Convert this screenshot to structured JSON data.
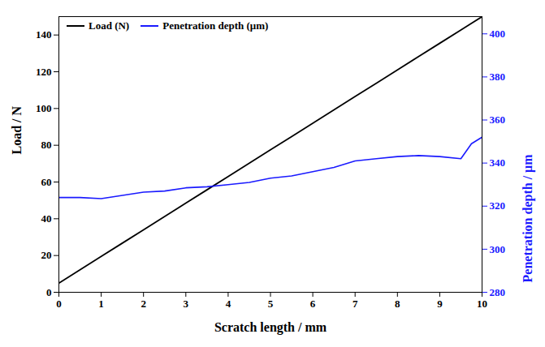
{
  "chart_data": {
    "type": "line",
    "x_label": "Scratch length / mm",
    "y_label": "Load / N",
    "y2_label": "Penetration depth / μm",
    "x": [
      0,
      0.5,
      1,
      1.5,
      2,
      2.5,
      3,
      3.5,
      4,
      4.5,
      5,
      5.5,
      6,
      6.5,
      7,
      7.5,
      8,
      8.5,
      9,
      9.5,
      9.75,
      10
    ],
    "series": [
      {
        "name": "Load (N)",
        "color": "#000000",
        "values": [
          5,
          12.25,
          19.5,
          26.75,
          34,
          41.25,
          48.5,
          55.75,
          63,
          70.25,
          77.5,
          84.75,
          92,
          99.25,
          106.5,
          113.75,
          121,
          128.25,
          135.5,
          142.75,
          146.4,
          150
        ]
      },
      {
        "name": "Penetration depth (μm)",
        "color": "#1a1aff",
        "axis": "y2",
        "values": [
          324,
          324,
          323.5,
          325,
          326.5,
          327,
          328.5,
          329,
          330,
          331,
          333,
          334,
          336,
          338,
          341,
          342,
          343,
          343.5,
          343,
          342,
          349,
          352
        ]
      }
    ],
    "xlim": [
      0,
      10
    ],
    "xticks": [
      0,
      1,
      2,
      3,
      4,
      5,
      6,
      7,
      8,
      9,
      10
    ],
    "ylim": [
      0,
      150
    ],
    "yticks": [
      0,
      20,
      40,
      60,
      80,
      100,
      120,
      140
    ],
    "y2lim": [
      280,
      408
    ],
    "y2ticks": [
      280,
      300,
      320,
      340,
      360,
      380,
      400
    ],
    "legend": "upper left",
    "grid": false
  }
}
